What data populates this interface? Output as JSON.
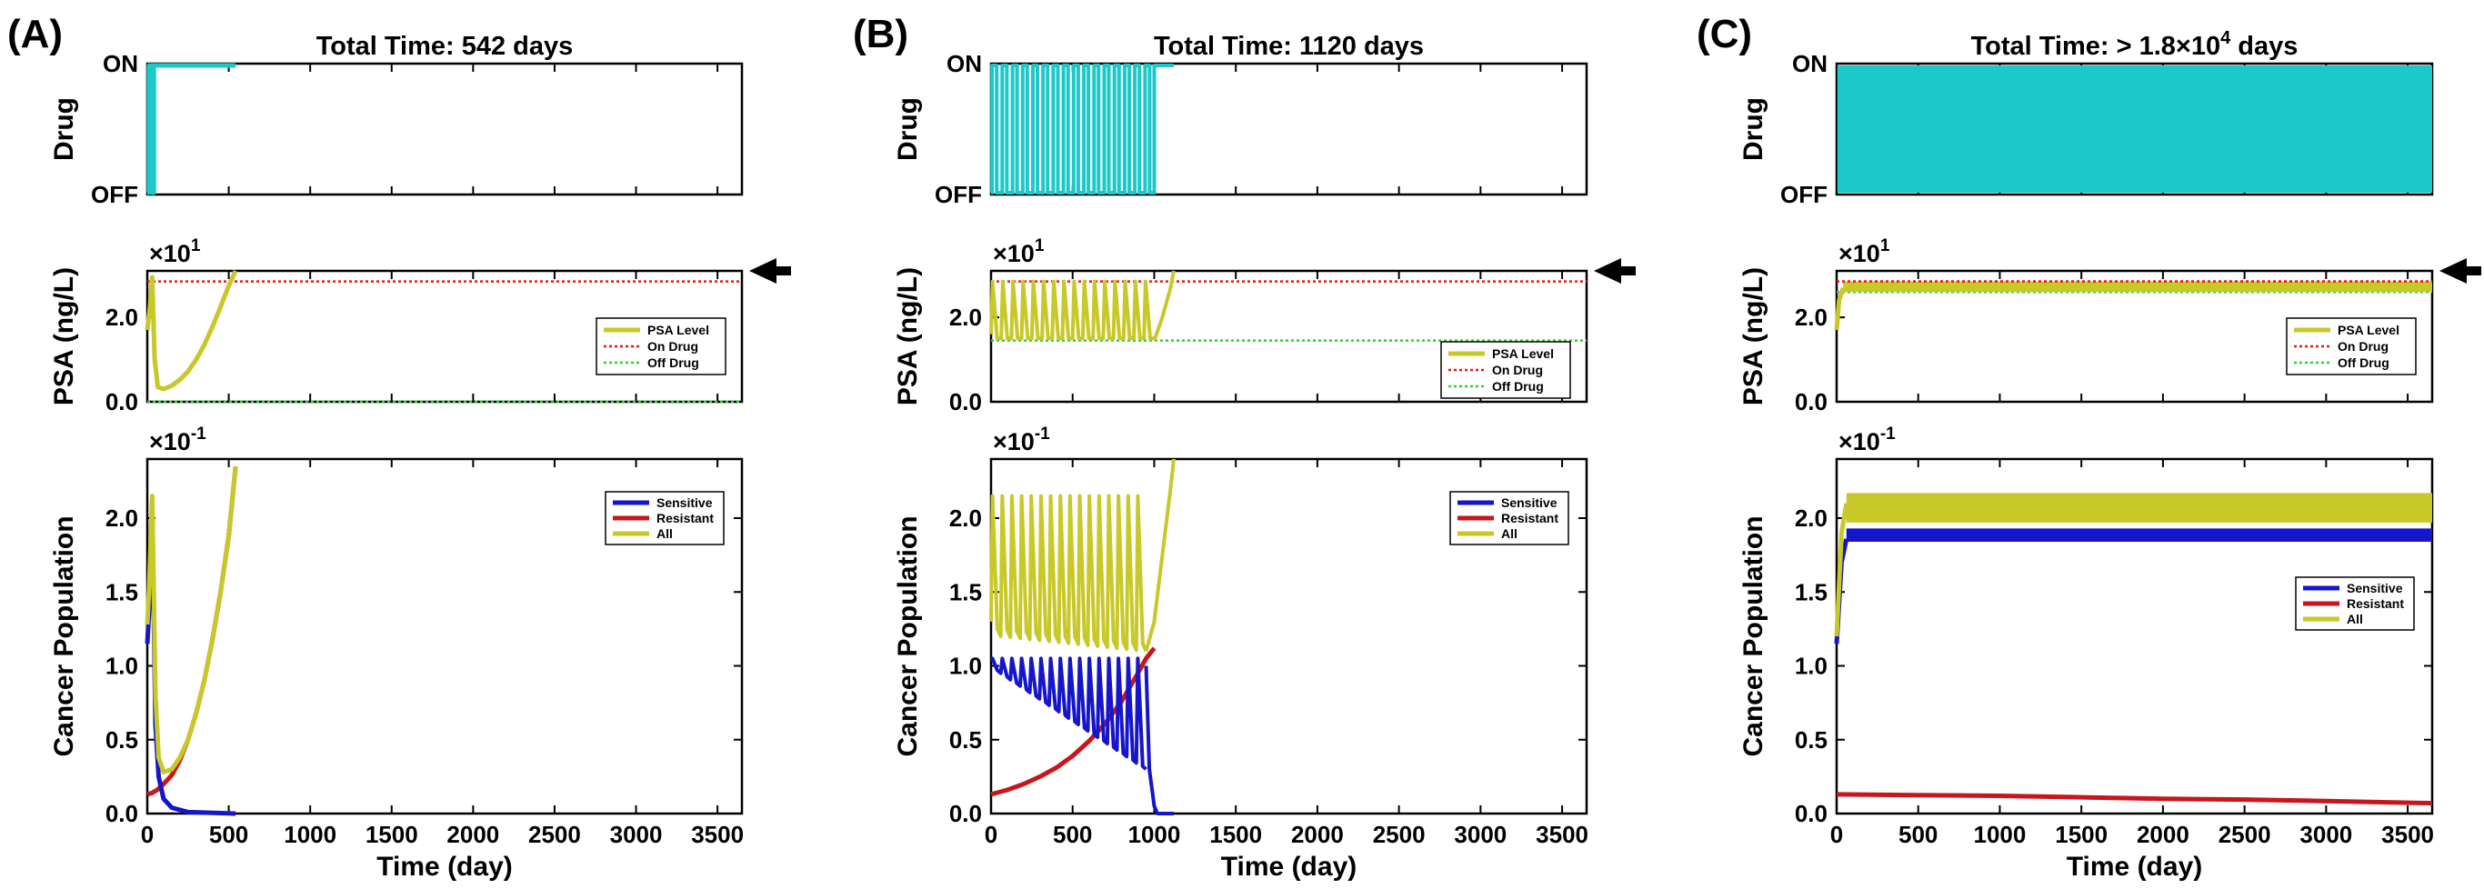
{
  "chart_data": [
    {
      "panel": "(A)",
      "title": "Total Time: 542 days",
      "end_time": 542,
      "type": "line",
      "drug": {
        "ylabel": "Drug",
        "on_label": "ON",
        "off_label": "OFF",
        "color": "#1cc8c8",
        "series": [
          [
            0,
            0
          ],
          [
            10,
            0
          ],
          [
            10,
            1
          ],
          [
            30,
            1
          ],
          [
            30,
            0
          ],
          [
            40,
            0
          ],
          [
            40,
            1
          ],
          [
            542,
            1
          ]
        ]
      },
      "psa": {
        "ylabel": "PSA (ng/L)",
        "exponent_base": "×10",
        "exponent": "1",
        "ylim": [
          0,
          3.1
        ],
        "yticks": [
          "0.0",
          "2.0"
        ],
        "on_drug_threshold": 2.85,
        "off_drug_threshold": 0.0,
        "legend": [
          "PSA Level",
          "On Drug",
          "Off Drug"
        ],
        "legend_position": "right-middle",
        "psa_level": [
          [
            0,
            1.7
          ],
          [
            15,
            2.2
          ],
          [
            30,
            2.95
          ],
          [
            45,
            1.0
          ],
          [
            65,
            0.35
          ],
          [
            100,
            0.3
          ],
          [
            150,
            0.38
          ],
          [
            200,
            0.52
          ],
          [
            250,
            0.72
          ],
          [
            300,
            1.0
          ],
          [
            350,
            1.35
          ],
          [
            400,
            1.78
          ],
          [
            450,
            2.25
          ],
          [
            500,
            2.75
          ],
          [
            542,
            3.1
          ]
        ],
        "arrow": true
      },
      "population": {
        "ylabel": "Cancer Population",
        "exponent_base": "×10",
        "exponent": "-1",
        "ylim": [
          0,
          2.4
        ],
        "yticks": [
          "0.0",
          "0.5",
          "1.0",
          "1.5",
          "2.0"
        ],
        "legend": [
          "Sensitive",
          "Resistant",
          "All"
        ],
        "legend_position": "top-right",
        "sensitive": [
          [
            0,
            1.15
          ],
          [
            10,
            1.35
          ],
          [
            30,
            2.05
          ],
          [
            50,
            0.6
          ],
          [
            70,
            0.25
          ],
          [
            100,
            0.1
          ],
          [
            150,
            0.04
          ],
          [
            250,
            0.01
          ],
          [
            542,
            0.0
          ]
        ],
        "resistant": [
          [
            0,
            0.13
          ],
          [
            30,
            0.14
          ],
          [
            60,
            0.16
          ],
          [
            100,
            0.2
          ],
          [
            150,
            0.26
          ],
          [
            200,
            0.36
          ],
          [
            250,
            0.5
          ],
          [
            300,
            0.68
          ],
          [
            350,
            0.9
          ],
          [
            400,
            1.18
          ],
          [
            450,
            1.5
          ],
          [
            500,
            1.88
          ],
          [
            542,
            2.35
          ]
        ],
        "all": [
          [
            0,
            1.28
          ],
          [
            10,
            1.5
          ],
          [
            30,
            2.15
          ],
          [
            50,
            0.8
          ],
          [
            70,
            0.38
          ],
          [
            100,
            0.28
          ],
          [
            150,
            0.3
          ],
          [
            200,
            0.38
          ],
          [
            250,
            0.5
          ],
          [
            300,
            0.68
          ],
          [
            350,
            0.9
          ],
          [
            400,
            1.18
          ],
          [
            450,
            1.5
          ],
          [
            500,
            1.88
          ],
          [
            542,
            2.35
          ]
        ]
      },
      "xlabel": "Time (day)",
      "xlim": [
        0,
        3650
      ],
      "xticks": [
        "0",
        "500",
        "1000",
        "1500",
        "2000",
        "2500",
        "3000",
        "3500"
      ]
    },
    {
      "panel": "(B)",
      "title": "Total Time: 1120 days",
      "end_time": 1120,
      "type": "line",
      "drug": {
        "ylabel": "Drug",
        "on_label": "ON",
        "off_label": "OFF",
        "color": "#1cc8c8",
        "cycles": 16,
        "cycle_end": 1000,
        "series": []
      },
      "psa": {
        "ylabel": "PSA (ng/L)",
        "exponent_base": "×10",
        "exponent": "1",
        "ylim": [
          0,
          3.1
        ],
        "yticks": [
          "0.0",
          "2.0"
        ],
        "on_drug_threshold": 2.85,
        "off_drug_threshold": 1.45,
        "legend": [
          "PSA Level",
          "On Drug",
          "Off Drug"
        ],
        "legend_position": "right-lower",
        "cycles": 16,
        "cycle_end": 1000,
        "low": 1.45,
        "high": 2.85,
        "final_rise": [
          [
            1000,
            1.45
          ],
          [
            1050,
            2.0
          ],
          [
            1100,
            2.7
          ],
          [
            1120,
            3.1
          ]
        ],
        "arrow": true
      },
      "population": {
        "ylabel": "Cancer Population",
        "exponent_base": "×10",
        "exponent": "-1",
        "ylim": [
          0,
          2.4
        ],
        "yticks": [
          "0.0",
          "0.5",
          "1.0",
          "1.5",
          "2.0"
        ],
        "legend": [
          "Sensitive",
          "Resistant",
          "All"
        ],
        "legend_position": "top-right",
        "cycles": 16,
        "cycle_end": 950,
        "all_low_start": 1.2,
        "all_low_end": 1.1,
        "all_high": 2.15,
        "sens_low_start": 0.95,
        "sens_low_end": 0.3,
        "sens_high": 1.05,
        "resistant": [
          [
            0,
            0.13
          ],
          [
            100,
            0.16
          ],
          [
            200,
            0.2
          ],
          [
            300,
            0.25
          ],
          [
            400,
            0.31
          ],
          [
            500,
            0.39
          ],
          [
            600,
            0.49
          ],
          [
            700,
            0.61
          ],
          [
            800,
            0.76
          ],
          [
            900,
            0.95
          ],
          [
            950,
            1.05
          ],
          [
            1000,
            1.12
          ]
        ],
        "all_final": [
          [
            950,
            1.1
          ],
          [
            1000,
            1.3
          ],
          [
            1050,
            1.75
          ],
          [
            1100,
            2.2
          ],
          [
            1120,
            2.4
          ]
        ],
        "sens_final": [
          [
            950,
            1.0
          ],
          [
            970,
            0.3
          ],
          [
            1000,
            0.05
          ],
          [
            1020,
            0.0
          ],
          [
            1120,
            0.0
          ]
        ]
      },
      "xlabel": "Time (day)",
      "xlim": [
        0,
        3650
      ],
      "xticks": [
        "0",
        "500",
        "1000",
        "1500",
        "2000",
        "2500",
        "3000",
        "3500"
      ]
    },
    {
      "panel": "(C)",
      "title_prefix": "Total Time: > 1.8×10",
      "title_exponent": "4",
      "title_suffix": " days",
      "type": "line",
      "drug": {
        "ylabel": "Drug",
        "on_label": "ON",
        "off_label": "OFF",
        "color": "#1cc8c8",
        "filled_from": 15,
        "filled_to": 3650
      },
      "psa": {
        "ylabel": "PSA (ng/L)",
        "exponent_base": "×10",
        "exponent": "1",
        "ylim": [
          0,
          3.1
        ],
        "yticks": [
          "0.0",
          "2.0"
        ],
        "on_drug_threshold": 2.85,
        "off_drug_threshold": 2.6,
        "legend": [
          "PSA Level",
          "On Drug",
          "Off Drug"
        ],
        "legend_position": "right-middle",
        "band_low": 2.6,
        "band_high": 2.85,
        "arrow": true
      },
      "population": {
        "ylabel": "Cancer Population",
        "exponent_base": "×10",
        "exponent": "-1",
        "ylim": [
          0,
          2.4
        ],
        "yticks": [
          "0.0",
          "0.5",
          "1.0",
          "1.5",
          "2.0"
        ],
        "legend": [
          "Sensitive",
          "Resistant",
          "All"
        ],
        "legend_position": "right-middle",
        "all_band": [
          1.97,
          2.17
        ],
        "sens_band": [
          1.84,
          1.93
        ],
        "start_rise": [
          [
            0,
            1.2
          ],
          [
            30,
            1.9
          ],
          [
            60,
            2.1
          ]
        ],
        "resistant": [
          [
            0,
            0.13
          ],
          [
            500,
            0.125
          ],
          [
            1000,
            0.12
          ],
          [
            1500,
            0.11
          ],
          [
            2000,
            0.1
          ],
          [
            2500,
            0.095
          ],
          [
            3000,
            0.085
          ],
          [
            3650,
            0.07
          ]
        ]
      },
      "xlabel": "Time (day)",
      "xlim": [
        0,
        3650
      ],
      "xticks": [
        "0",
        "500",
        "1000",
        "1500",
        "2000",
        "2500",
        "3000",
        "3500"
      ]
    }
  ],
  "colors": {
    "drug": "#1cc8c8",
    "sensitive": "#1515c9",
    "resistant": "#c8161d",
    "all": "#c8c829",
    "on_drug": "#e6191a",
    "off_drug": "#2ed12e"
  }
}
